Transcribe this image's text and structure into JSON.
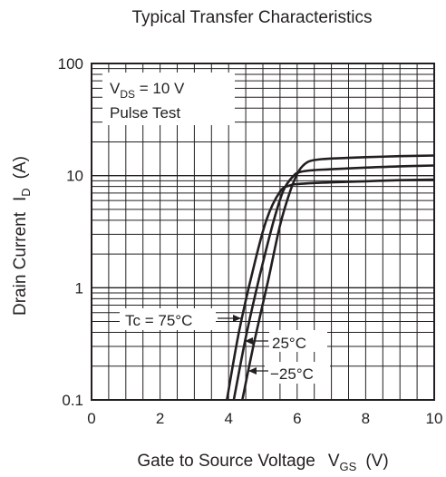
{
  "chart_data": {
    "type": "line",
    "title": "Typical Transfer Characteristics",
    "xlabel": {
      "text": "Gate to Source Voltage",
      "symbol": "V",
      "subscript": "GS",
      "unit": "(V)"
    },
    "ylabel": {
      "text": "Drain Current",
      "symbol": "I",
      "subscript": "D",
      "unit": "(A)"
    },
    "xlim": [
      0,
      10
    ],
    "ylim": [
      0.1,
      100
    ],
    "yscale": "log",
    "grid": true,
    "x_ticks": [
      "0",
      "2",
      "4",
      "6",
      "8",
      "10"
    ],
    "y_ticks": [
      "0.1",
      "1",
      "10",
      "100"
    ],
    "conditions": {
      "line1": {
        "symbol": "V",
        "subscript": "DS",
        "rest": " = 10 V"
      },
      "line2": "Pulse Test"
    },
    "series": [
      {
        "name": "Tc = 75°C",
        "x": [
          3.95,
          4.3,
          4.7,
          5.1,
          5.5,
          5.8,
          6.0,
          6.5,
          7,
          8,
          9,
          10
        ],
        "y": [
          0.1,
          0.4,
          1.4,
          4.0,
          7.2,
          8.2,
          8.4,
          8.6,
          8.7,
          8.9,
          9.1,
          9.2
        ]
      },
      {
        "name": "25°C",
        "x": [
          4.15,
          4.5,
          4.9,
          5.3,
          5.6,
          5.9,
          6.1,
          6.5,
          7,
          8,
          9,
          10
        ],
        "y": [
          0.1,
          0.36,
          1.25,
          3.8,
          7.4,
          10.0,
          10.8,
          11.2,
          11.4,
          11.8,
          12.1,
          12.3
        ]
      },
      {
        "name": "−25°C",
        "x": [
          4.4,
          4.75,
          5.15,
          5.5,
          5.8,
          6.05,
          6.3,
          6.6,
          7,
          8,
          9,
          10
        ],
        "y": [
          0.1,
          0.33,
          1.15,
          3.6,
          7.3,
          11.0,
          13.2,
          13.9,
          14.2,
          14.6,
          14.9,
          15.1
        ]
      }
    ],
    "annotations": [
      "Tc = 75°C",
      "25°C",
      "−25°C"
    ]
  }
}
